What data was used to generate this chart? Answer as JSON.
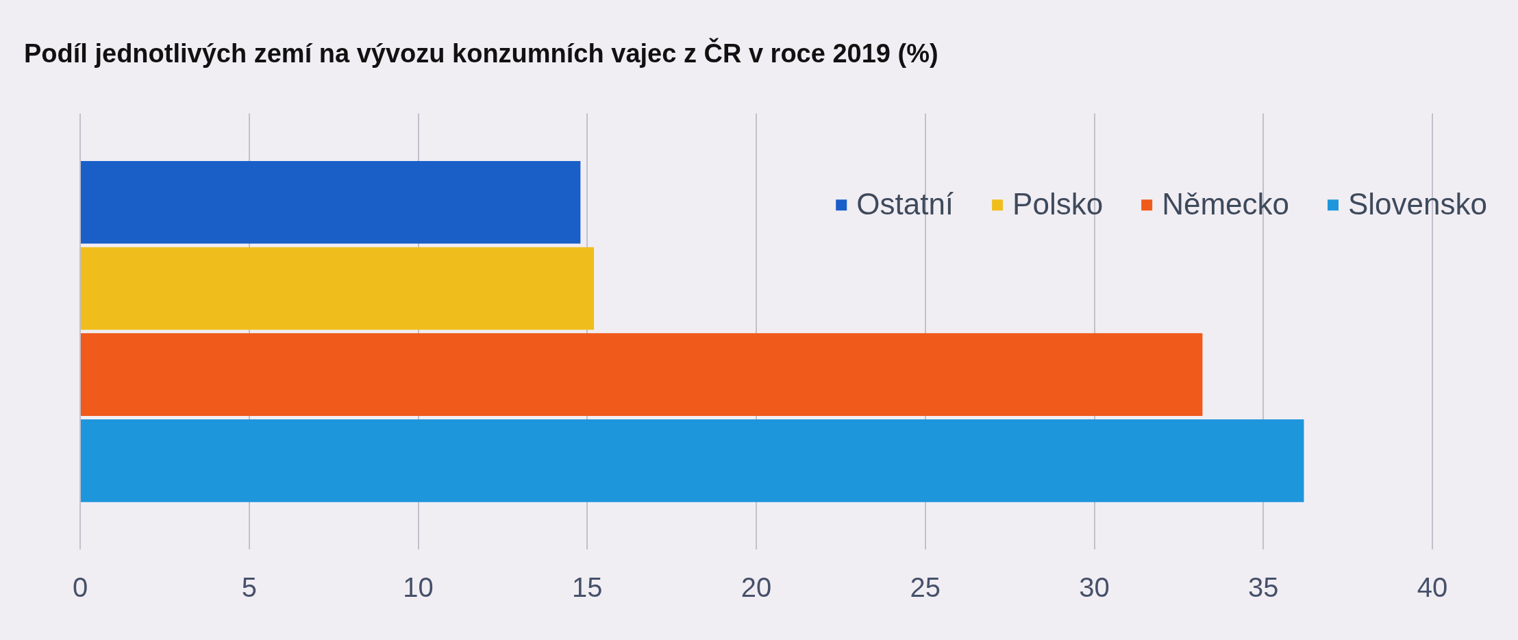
{
  "chart_data": {
    "type": "bar",
    "orientation": "horizontal",
    "title": "Podíl jednotlivých zemí na vývozu konzumních vajec z ČR v roce 2019 (%)",
    "categories": [
      null
    ],
    "series": [
      {
        "name": "Ostatní",
        "color": "#1a5fc8",
        "values": [
          14.8
        ]
      },
      {
        "name": "Polsko",
        "color": "#f0be1c",
        "values": [
          15.2
        ]
      },
      {
        "name": "Německo",
        "color": "#f05a1a",
        "values": [
          33.2
        ]
      },
      {
        "name": "Slovensko",
        "color": "#1e96dc",
        "values": [
          36.2
        ]
      }
    ],
    "xlim": [
      0,
      40
    ],
    "xticks": [
      0,
      5,
      10,
      15,
      20,
      25,
      30,
      35,
      40
    ],
    "grid": "x",
    "legend": "top right"
  }
}
